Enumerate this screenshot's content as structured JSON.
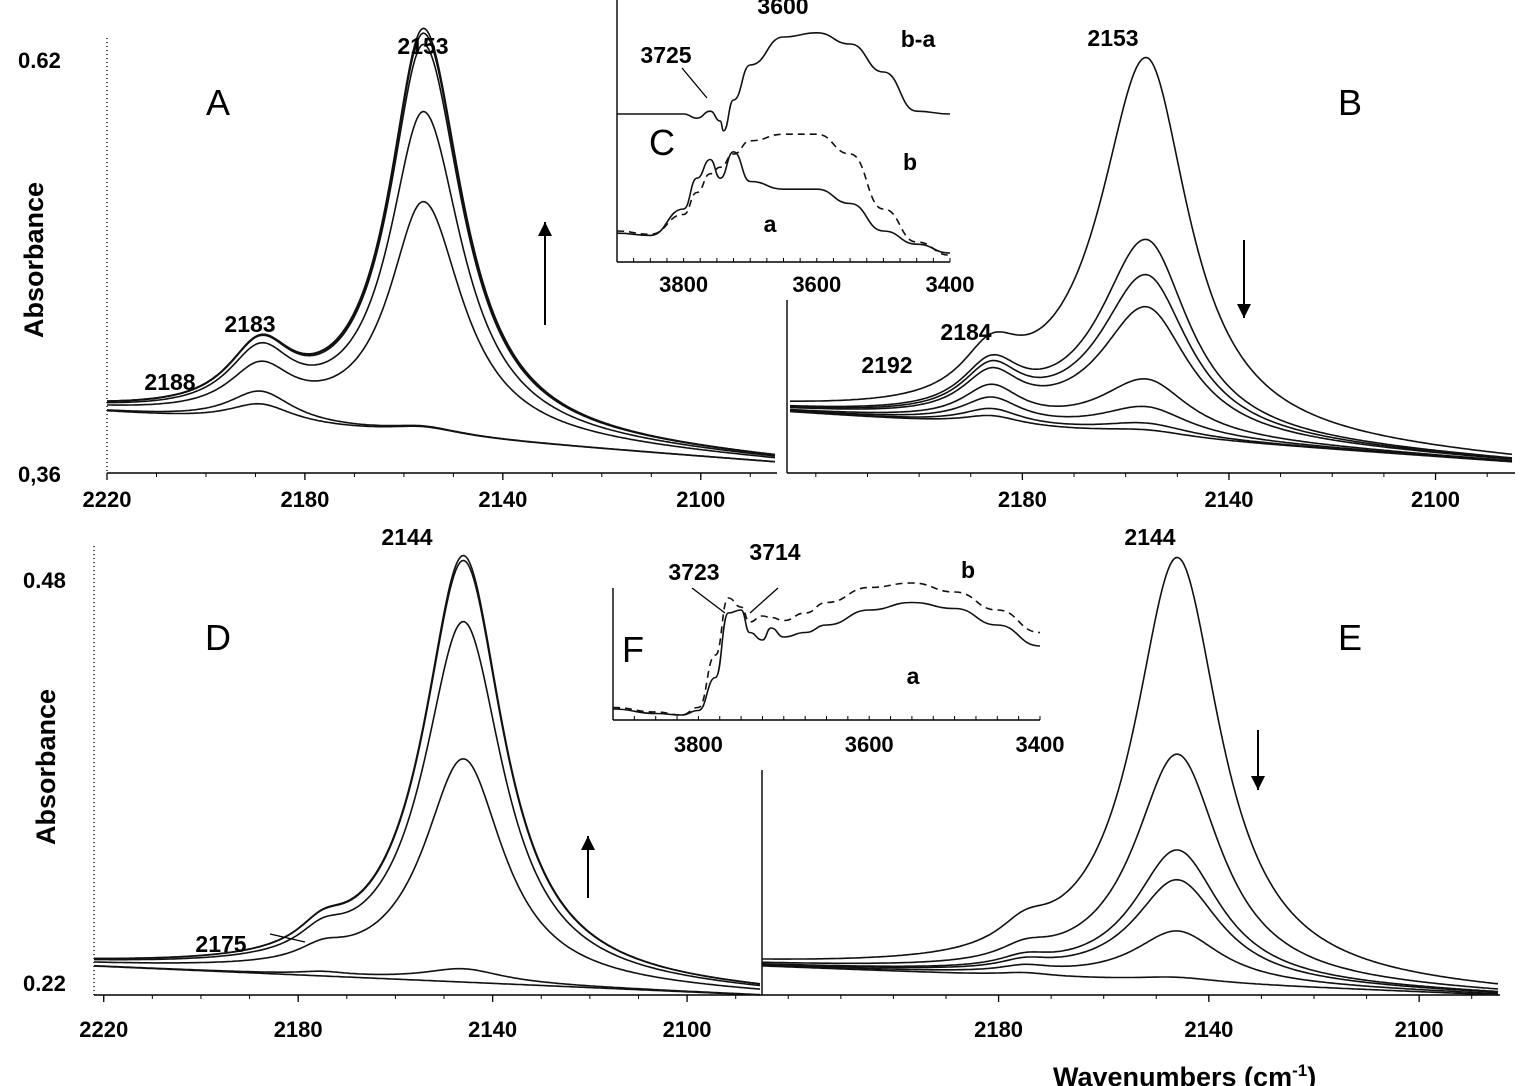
{
  "figure": {
    "y_axis_label": "Absorbance",
    "x_axis_label": "Wavenumbers (cm",
    "x_axis_label_sup": "-1",
    "x_axis_label_end": ")"
  },
  "chart_data": [
    {
      "panel": "A",
      "type": "line",
      "xlim": [
        2220,
        2085
      ],
      "ylim": [
        0.36,
        0.62
      ],
      "ytick_labels": [
        "0.62",
        "0,36"
      ],
      "xtick_labels": [
        "2220",
        "2180",
        "2140",
        "2100"
      ],
      "xticks": [
        2220,
        2180,
        2140,
        2100
      ],
      "arrow": "up",
      "annotations": [
        {
          "label": "2153",
          "x": 2156
        },
        {
          "label": "2183",
          "x": 2183
        },
        {
          "label": "2188",
          "x": 2190
        }
      ],
      "peak_params": [
        [
          2156,
          9.5,
          8.5
        ],
        [
          2189,
          8,
          8
        ]
      ],
      "spectra": [
        {
          "amp": [
            0.005,
            0.012
          ]
        },
        {
          "amp": [
            0.005,
            0.02
          ]
        },
        {
          "amp": [
            0.145,
            0.03
          ]
        },
        {
          "amp": [
            0.201,
            0.038
          ]
        },
        {
          "amp": [
            0.243,
            0.04
          ]
        },
        {
          "amp": [
            0.25,
            0.04
          ]
        },
        {
          "amp": [
            0.253,
            0.04
          ]
        }
      ]
    },
    {
      "panel": "B",
      "type": "line",
      "xlim": [
        2225,
        2085
      ],
      "ylim": [
        0.36,
        0.62
      ],
      "xtick_labels": [
        "2180",
        "2140",
        "2100"
      ],
      "xticks": [
        2180,
        2140,
        2100
      ],
      "arrow": "down",
      "annotations": [
        {
          "label": "2153",
          "x": 2156
        },
        {
          "label": "2184",
          "x": 2184
        },
        {
          "label": "2192",
          "x": 2192
        }
      ],
      "peak_params": [
        [
          2156,
          10,
          11
        ],
        [
          2186,
          7,
          7
        ]
      ],
      "spectra": [
        {
          "amp": [
            0.004,
            0.006
          ]
        },
        {
          "amp": [
            0.008,
            0.01
          ]
        },
        {
          "amp": [
            0.018,
            0.016
          ]
        },
        {
          "amp": [
            0.035,
            0.022
          ]
        },
        {
          "amp": [
            0.08,
            0.027
          ]
        },
        {
          "amp": [
            0.1,
            0.029
          ]
        },
        {
          "amp": [
            0.122,
            0.03
          ]
        },
        {
          "amp": [
            0.236,
            0.03
          ]
        }
      ]
    },
    {
      "panel": "C",
      "type": "line",
      "inset": true,
      "xlim": [
        3900,
        3400
      ],
      "xtick_labels": [
        "3800",
        "3600",
        "3400"
      ],
      "xticks": [
        3800,
        3600,
        3400
      ],
      "annotations": [
        {
          "label": "3600"
        },
        {
          "label": "3725"
        }
      ],
      "series": [
        {
          "name": "b-a",
          "x": [
            3900,
            3800,
            3780,
            3760,
            3745,
            3740,
            3725,
            3700,
            3650,
            3600,
            3550,
            3500,
            3450,
            3400
          ],
          "y": [
            0.2,
            0.2,
            0.17,
            0.22,
            0.15,
            0.08,
            0.3,
            0.55,
            0.75,
            0.78,
            0.7,
            0.5,
            0.22,
            0.2
          ]
        },
        {
          "name": "b",
          "x": [
            3900,
            3850,
            3800,
            3780,
            3760,
            3745,
            3725,
            3700,
            3650,
            3600,
            3550,
            3500,
            3450,
            3400
          ],
          "y": [
            -0.6,
            -0.63,
            -0.45,
            -0.25,
            -0.08,
            -0.02,
            0.1,
            0.22,
            0.28,
            0.28,
            0.1,
            -0.4,
            -0.7,
            -0.82
          ]
        },
        {
          "name": "a",
          "x": [
            3900,
            3850,
            3800,
            3780,
            3760,
            3745,
            3725,
            3700,
            3650,
            3600,
            3550,
            3500,
            3450,
            3400
          ],
          "y": [
            -0.62,
            -0.64,
            -0.4,
            -0.12,
            0.05,
            -0.12,
            0.12,
            -0.15,
            -0.22,
            -0.22,
            -0.35,
            -0.6,
            -0.72,
            -0.8
          ]
        }
      ]
    },
    {
      "panel": "D",
      "type": "line",
      "xlim": [
        2222,
        2085
      ],
      "ylim": [
        0.22,
        0.48
      ],
      "ytick_labels": [
        "0.48",
        "0.22"
      ],
      "xtick_labels": [
        "2220",
        "2180",
        "2140",
        "2100"
      ],
      "xticks": [
        2220,
        2180,
        2140,
        2100
      ],
      "arrow": "up",
      "annotations": [
        {
          "label": "2144",
          "x": 2146
        },
        {
          "label": "2175",
          "x": 2175
        }
      ],
      "peak_params": [
        [
          2146,
          10,
          10
        ],
        [
          2175,
          6,
          6
        ]
      ],
      "spectra": [
        {
          "amp": [
            0.0,
            0.0
          ]
        },
        {
          "amp": [
            0.008,
            0.002
          ]
        },
        {
          "amp": [
            0.135,
            0.008
          ]
        },
        {
          "amp": [
            0.218,
            0.012
          ]
        },
        {
          "amp": [
            0.255,
            0.013
          ]
        },
        {
          "amp": [
            0.258,
            0.013
          ]
        }
      ]
    },
    {
      "panel": "E",
      "type": "line",
      "xlim": [
        2225,
        2085
      ],
      "ylim": [
        0.22,
        0.48
      ],
      "xtick_labels": [
        "2180",
        "2140",
        "2100"
      ],
      "xticks": [
        2180,
        2140,
        2100
      ],
      "arrow": "down",
      "annotations": [
        {
          "label": "2144",
          "x": 2146
        }
      ],
      "peak_params": [
        [
          2146,
          10,
          10
        ],
        [
          2175,
          6,
          6
        ]
      ],
      "spectra": [
        {
          "amp": [
            0.003,
            0.002
          ]
        },
        {
          "amp": [
            0.031,
            0.004
          ]
        },
        {
          "amp": [
            0.062,
            0.005
          ]
        },
        {
          "amp": [
            0.08,
            0.006
          ]
        },
        {
          "amp": [
            0.138,
            0.008
          ]
        },
        {
          "amp": [
            0.257,
            0.013
          ]
        }
      ]
    },
    {
      "panel": "F",
      "type": "line",
      "inset": true,
      "xlim": [
        3900,
        3400
      ],
      "xtick_labels": [
        "3800",
        "3600",
        "3400"
      ],
      "xticks": [
        3800,
        3600,
        3400
      ],
      "annotations": [
        {
          "label": "3723"
        },
        {
          "label": "3714"
        }
      ],
      "series": [
        {
          "name": "b",
          "x": [
            3900,
            3850,
            3820,
            3800,
            3780,
            3765,
            3750,
            3740,
            3725,
            3715,
            3700,
            3675,
            3650,
            3600,
            3550,
            3500,
            3450,
            3400
          ],
          "y": [
            0.05,
            0.02,
            0.0,
            0.05,
            0.4,
            0.78,
            0.72,
            0.62,
            0.66,
            0.65,
            0.63,
            0.68,
            0.75,
            0.85,
            0.88,
            0.82,
            0.7,
            0.55
          ]
        },
        {
          "name": "a",
          "x": [
            3900,
            3850,
            3820,
            3800,
            3780,
            3765,
            3750,
            3740,
            3725,
            3715,
            3700,
            3675,
            3650,
            3600,
            3550,
            3500,
            3450,
            3400
          ],
          "y": [
            0.04,
            0.01,
            0.0,
            0.03,
            0.25,
            0.68,
            0.7,
            0.55,
            0.5,
            0.58,
            0.52,
            0.55,
            0.6,
            0.7,
            0.75,
            0.71,
            0.6,
            0.46
          ]
        }
      ]
    }
  ]
}
